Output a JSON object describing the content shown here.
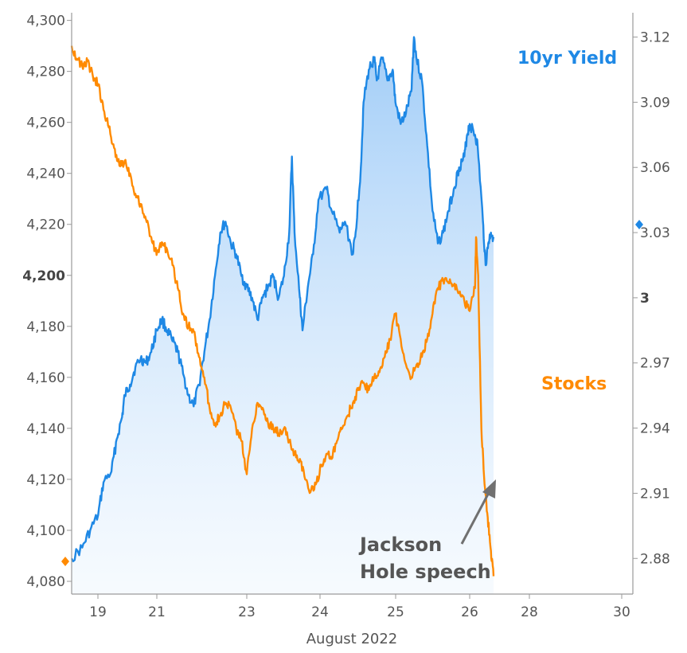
{
  "chart_data": {
    "type": "line",
    "xlabel": "August 2022",
    "x_ticks": [
      "19",
      "21",
      "23",
      "24",
      "25",
      "26",
      "28",
      "30"
    ],
    "y_left": {
      "ticks": [
        "4,080",
        "4,100",
        "4,120",
        "4,140",
        "4,160",
        "4,180",
        "4,200",
        "4,220",
        "4,240",
        "4,260",
        "4,280",
        "4,300"
      ],
      "highlight": "4,200",
      "range": [
        4075,
        4303
      ]
    },
    "y_right": {
      "ticks": [
        "2.88",
        "2.91",
        "2.94",
        "2.97",
        "3",
        "3.03",
        "3.06",
        "3.09",
        "3.12"
      ],
      "highlight": "3",
      "range": [
        2.8636,
        3.1312
      ]
    },
    "series": [
      {
        "name": "10yr Yield",
        "axis": "right",
        "color": "#1e88e5",
        "area_fill": true,
        "points": [
          [
            0.0,
            2.88
          ],
          [
            0.2,
            2.885
          ],
          [
            0.35,
            2.893
          ],
          [
            0.5,
            2.9
          ],
          [
            0.6,
            2.915
          ],
          [
            0.75,
            2.92
          ],
          [
            0.85,
            2.935
          ],
          [
            0.95,
            2.945
          ],
          [
            1.0,
            2.955
          ],
          [
            1.1,
            2.96
          ],
          [
            1.2,
            2.968
          ],
          [
            1.3,
            2.972
          ],
          [
            1.4,
            2.97
          ],
          [
            1.5,
            2.975
          ],
          [
            1.6,
            2.985
          ],
          [
            1.7,
            2.99
          ],
          [
            1.8,
            2.985
          ],
          [
            1.9,
            2.98
          ],
          [
            2.0,
            2.975
          ],
          [
            2.1,
            2.965
          ],
          [
            2.2,
            2.955
          ],
          [
            2.3,
            2.95
          ],
          [
            2.4,
            2.96
          ],
          [
            2.5,
            2.975
          ],
          [
            2.6,
            2.99
          ],
          [
            2.7,
            3.01
          ],
          [
            2.8,
            3.03
          ],
          [
            2.9,
            3.035
          ],
          [
            3.0,
            3.025
          ],
          [
            3.1,
            3.02
          ],
          [
            3.2,
            3.01
          ],
          [
            3.3,
            3.005
          ],
          [
            3.4,
            3.0
          ],
          [
            3.5,
            2.99
          ],
          [
            3.6,
            3.0
          ],
          [
            3.7,
            3.005
          ],
          [
            3.8,
            3.01
          ],
          [
            3.9,
            3.0
          ],
          [
            4.0,
            3.01
          ],
          [
            4.1,
            3.03
          ],
          [
            4.15,
            3.065
          ],
          [
            4.2,
            3.03
          ],
          [
            4.3,
            3.0
          ],
          [
            4.35,
            2.985
          ],
          [
            4.45,
            3.005
          ],
          [
            4.55,
            3.02
          ],
          [
            4.65,
            3.045
          ],
          [
            4.8,
            3.05
          ],
          [
            4.9,
            3.04
          ],
          [
            5.05,
            3.03
          ],
          [
            5.15,
            3.035
          ],
          [
            5.3,
            3.02
          ],
          [
            5.35,
            3.03
          ],
          [
            5.45,
            3.06
          ],
          [
            5.5,
            3.09
          ],
          [
            5.6,
            3.105
          ],
          [
            5.7,
            3.11
          ],
          [
            5.75,
            3.1
          ],
          [
            5.85,
            3.11
          ],
          [
            5.95,
            3.1
          ],
          [
            6.05,
            3.105
          ],
          [
            6.1,
            3.09
          ],
          [
            6.2,
            3.08
          ],
          [
            6.3,
            3.085
          ],
          [
            6.4,
            3.095
          ],
          [
            6.45,
            3.12
          ],
          [
            6.5,
            3.11
          ],
          [
            6.6,
            3.1
          ],
          [
            6.7,
            3.07
          ],
          [
            6.8,
            3.04
          ],
          [
            6.9,
            3.025
          ],
          [
            7.0,
            3.03
          ],
          [
            7.1,
            3.04
          ],
          [
            7.2,
            3.05
          ],
          [
            7.3,
            3.06
          ],
          [
            7.4,
            3.065
          ],
          [
            7.45,
            3.075
          ],
          [
            7.5,
            3.08
          ],
          [
            7.6,
            3.075
          ],
          [
            7.65,
            3.07
          ],
          [
            7.75,
            3.035
          ],
          [
            7.8,
            3.015
          ],
          [
            7.85,
            3.025
          ],
          [
            7.9,
            3.03
          ],
          [
            7.95,
            3.028
          ]
        ]
      },
      {
        "name": "Stocks",
        "axis": "left",
        "color": "#ff8a00",
        "area_fill": false,
        "points": [
          [
            0.0,
            4290
          ],
          [
            0.1,
            4285
          ],
          [
            0.2,
            4282
          ],
          [
            0.3,
            4284
          ],
          [
            0.4,
            4278
          ],
          [
            0.5,
            4275
          ],
          [
            0.6,
            4265
          ],
          [
            0.7,
            4258
          ],
          [
            0.8,
            4250
          ],
          [
            0.9,
            4243
          ],
          [
            1.0,
            4245
          ],
          [
            1.1,
            4240
          ],
          [
            1.2,
            4232
          ],
          [
            1.3,
            4228
          ],
          [
            1.4,
            4222
          ],
          [
            1.5,
            4215
          ],
          [
            1.6,
            4208
          ],
          [
            1.7,
            4213
          ],
          [
            1.8,
            4210
          ],
          [
            1.9,
            4204
          ],
          [
            2.0,
            4195
          ],
          [
            2.1,
            4185
          ],
          [
            2.2,
            4180
          ],
          [
            2.3,
            4178
          ],
          [
            2.4,
            4168
          ],
          [
            2.5,
            4160
          ],
          [
            2.6,
            4148
          ],
          [
            2.7,
            4142
          ],
          [
            2.8,
            4145
          ],
          [
            2.9,
            4150
          ],
          [
            3.0,
            4148
          ],
          [
            3.1,
            4140
          ],
          [
            3.2,
            4135
          ],
          [
            3.3,
            4122
          ],
          [
            3.4,
            4140
          ],
          [
            3.5,
            4150
          ],
          [
            3.6,
            4148
          ],
          [
            3.7,
            4142
          ],
          [
            3.8,
            4140
          ],
          [
            3.9,
            4138
          ],
          [
            4.0,
            4140
          ],
          [
            4.1,
            4135
          ],
          [
            4.2,
            4130
          ],
          [
            4.3,
            4128
          ],
          [
            4.4,
            4120
          ],
          [
            4.5,
            4115
          ],
          [
            4.6,
            4118
          ],
          [
            4.7,
            4125
          ],
          [
            4.8,
            4130
          ],
          [
            4.9,
            4128
          ],
          [
            5.0,
            4135
          ],
          [
            5.1,
            4140
          ],
          [
            5.2,
            4145
          ],
          [
            5.3,
            4150
          ],
          [
            5.4,
            4155
          ],
          [
            5.5,
            4158
          ],
          [
            5.6,
            4155
          ],
          [
            5.7,
            4160
          ],
          [
            5.8,
            4162
          ],
          [
            5.9,
            4168
          ],
          [
            6.0,
            4175
          ],
          [
            6.1,
            4185
          ],
          [
            6.2,
            4175
          ],
          [
            6.3,
            4165
          ],
          [
            6.4,
            4160
          ],
          [
            6.5,
            4165
          ],
          [
            6.6,
            4168
          ],
          [
            6.7,
            4175
          ],
          [
            6.8,
            4185
          ],
          [
            6.9,
            4195
          ],
          [
            7.0,
            4198
          ],
          [
            7.1,
            4197
          ],
          [
            7.2,
            4196
          ],
          [
            7.3,
            4193
          ],
          [
            7.4,
            4190
          ],
          [
            7.5,
            4186
          ],
          [
            7.6,
            4195
          ],
          [
            7.62,
            4215
          ],
          [
            7.66,
            4200
          ],
          [
            7.72,
            4140
          ],
          [
            7.78,
            4118
          ],
          [
            7.84,
            4105
          ],
          [
            7.9,
            4092
          ],
          [
            7.95,
            4082
          ]
        ]
      }
    ],
    "annotation": {
      "lines": [
        "Jackson",
        "Hole speech"
      ]
    },
    "legend_placement": "inline labels"
  }
}
